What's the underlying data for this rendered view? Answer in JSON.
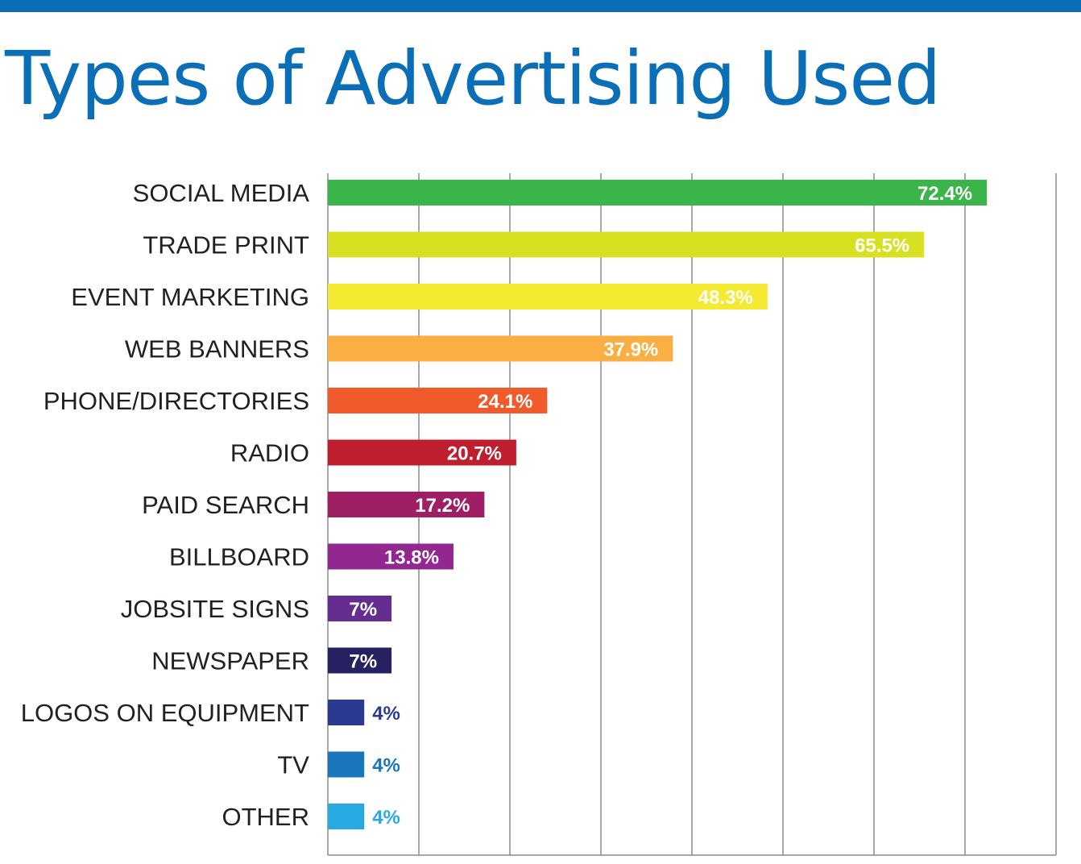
{
  "header": {
    "title": "Types of Advertising Used",
    "accent_color": "#0a6fb7"
  },
  "chart_data": {
    "type": "bar",
    "orientation": "horizontal",
    "title": "Types of Advertising Used",
    "xlabel": "",
    "ylabel": "",
    "xlim": [
      0,
      80
    ],
    "grid": true,
    "legend": "none",
    "categories": [
      "SOCIAL MEDIA",
      "TRADE PRINT",
      "EVENT MARKETING",
      "WEB BANNERS",
      "PHONE/DIRECTORIES",
      "RADIO",
      "PAID SEARCH",
      "BILLBOARD",
      "JOBSITE SIGNS",
      "NEWSPAPER",
      "LOGOS ON EQUIPMENT",
      "TV",
      "OTHER"
    ],
    "values": [
      72.4,
      65.5,
      48.3,
      37.9,
      24.1,
      20.7,
      17.2,
      13.8,
      7,
      7,
      4,
      4,
      4
    ],
    "value_labels": [
      "72.4%",
      "65.5%",
      "48.3%",
      "37.9%",
      "24.1%",
      "20.7%",
      "17.2%",
      "13.8%",
      "7%",
      "7%",
      "4%",
      "4%",
      "4%"
    ],
    "colors": [
      "#3bb54a",
      "#d7e021",
      "#f4ea32",
      "#fbae42",
      "#f15a2b",
      "#bf1e2e",
      "#9e1f63",
      "#92278f",
      "#662d91",
      "#262262",
      "#2b3990",
      "#1b75bb",
      "#27aae1"
    ]
  }
}
